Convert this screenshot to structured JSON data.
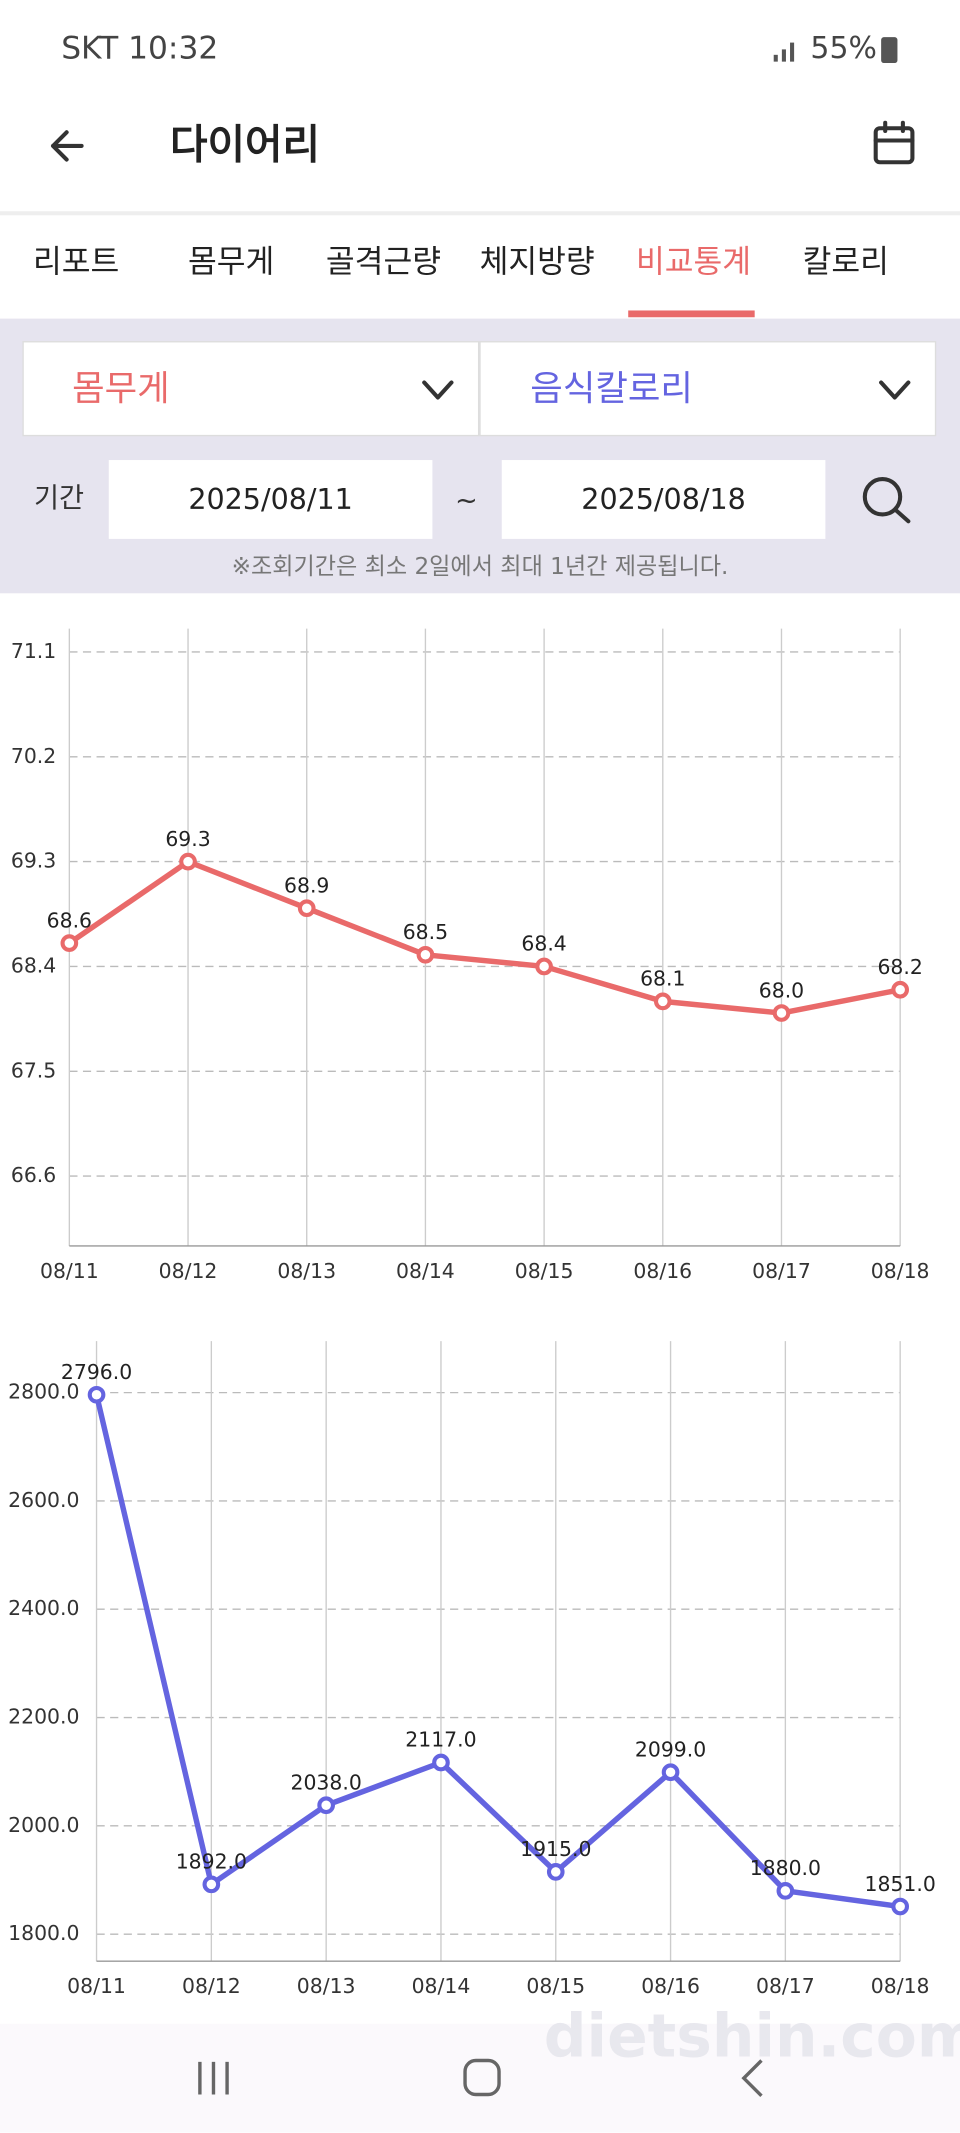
{
  "status_bar": {
    "carrier_time": "SKT 10:32",
    "battery": "55%"
  },
  "header": {
    "title": "다이어리"
  },
  "tabs": [
    "리포트",
    "몸무게",
    "골격근량",
    "체지방량",
    "비교통계",
    "칼로리"
  ],
  "filters": {
    "left_select": "몸무게",
    "right_select": "음식칼로리",
    "period_label": "기간",
    "start_date": "2025/08/11",
    "separator": "~",
    "end_date": "2025/08/18",
    "note": "※조회기간은 최소 2일에서 최대 1년간 제공됩니다."
  },
  "watermark": "dietshin.com",
  "chart_data": [
    {
      "type": "line",
      "color": "#e96a6a",
      "categories": [
        "08/11",
        "08/12",
        "08/13",
        "08/14",
        "08/15",
        "08/16",
        "08/17",
        "08/18"
      ],
      "values": [
        68.6,
        69.3,
        68.9,
        68.5,
        68.4,
        68.1,
        68.0,
        68.2
      ],
      "value_labels": [
        "68.6",
        "69.3",
        "68.9",
        "68.5",
        "68.4",
        "68.1",
        "68.0",
        "68.2"
      ],
      "ylim": [
        66.0,
        71.3
      ],
      "yticks": [
        66.6,
        67.5,
        68.4,
        69.3,
        70.2,
        71.1
      ],
      "grid": true
    },
    {
      "type": "line",
      "color": "#6464e0",
      "categories": [
        "08/11",
        "08/12",
        "08/13",
        "08/14",
        "08/15",
        "08/16",
        "08/17",
        "08/18"
      ],
      "values": [
        2796,
        1892,
        2038,
        2117,
        1915,
        2099,
        1880,
        1851
      ],
      "value_labels": [
        "2796.0",
        "1892.0",
        "2038.0",
        "2117.0",
        "1915.0",
        "2099.0",
        "1880.0",
        "1851.0"
      ],
      "ylim": [
        1750,
        2895
      ],
      "yticks": [
        {
          "value": 1800,
          "label": "1800.0"
        },
        {
          "value": 2000,
          "label": "2000.0"
        },
        {
          "value": 2200,
          "label": "2200.0"
        },
        {
          "value": 2400,
          "label": "2400.0"
        },
        {
          "value": 2600,
          "label": "2600.0"
        },
        {
          "value": 2800,
          "label": "2800.0"
        }
      ],
      "grid": true
    }
  ]
}
